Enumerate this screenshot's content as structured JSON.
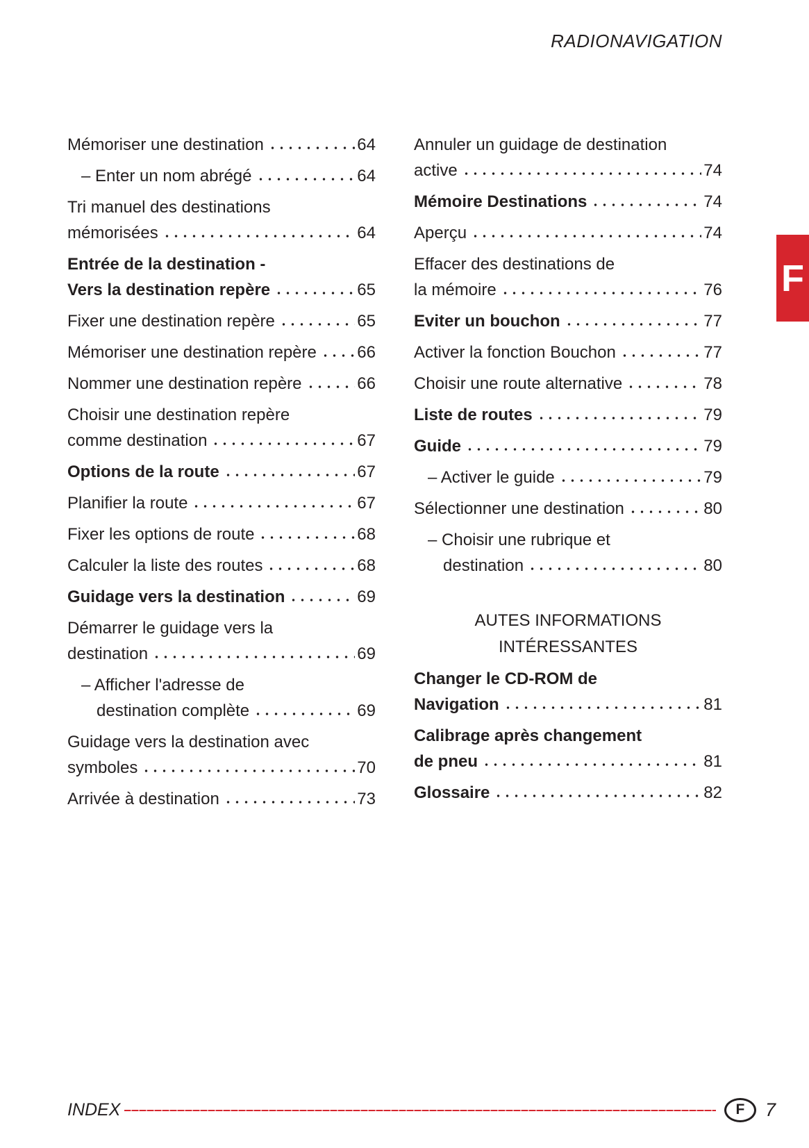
{
  "header": {
    "title": "RADIONAVIGATION"
  },
  "tab": {
    "label": "F"
  },
  "colors": {
    "accent_red": "#d6252d",
    "text": "#231f20"
  },
  "toc": {
    "left_column": [
      {
        "lines": [
          "Mémoriser une destination"
        ],
        "page": "64",
        "style": "normal"
      },
      {
        "lines": [
          "– Enter un nom abrégé"
        ],
        "page": "64",
        "style": "sub"
      },
      {
        "lines": [
          "Tri manuel des destinations",
          "mémorisées"
        ],
        "page": "64",
        "style": "normal"
      },
      {
        "lines": [
          "Entrée de la destination -",
          "Vers la destination repère"
        ],
        "page": "65",
        "style": "bold"
      },
      {
        "lines": [
          "Fixer une destination repère"
        ],
        "page": "65",
        "style": "normal"
      },
      {
        "lines": [
          "Mémoriser une destination repère"
        ],
        "page": "66",
        "style": "normal"
      },
      {
        "lines": [
          "Nommer une destination repère"
        ],
        "page": "66",
        "style": "normal"
      },
      {
        "lines": [
          "Choisir une destination repère",
          "comme destination"
        ],
        "page": "67",
        "style": "normal"
      },
      {
        "lines": [
          "Options de la route"
        ],
        "page": "67",
        "style": "bold"
      },
      {
        "lines": [
          "Planifier la route"
        ],
        "page": "67",
        "style": "normal"
      },
      {
        "lines": [
          "Fixer les options de route"
        ],
        "page": "68",
        "style": "normal"
      },
      {
        "lines": [
          "Calculer la liste des routes"
        ],
        "page": "68",
        "style": "normal"
      },
      {
        "lines": [
          "Guidage vers la destination"
        ],
        "page": "69",
        "style": "bold"
      },
      {
        "lines": [
          "Démarrer le guidage vers la",
          "destination"
        ],
        "page": "69",
        "style": "normal"
      },
      {
        "lines": [
          "– Afficher l'adresse de",
          "destination complète"
        ],
        "page": "69",
        "style": "sub"
      },
      {
        "lines": [
          "Guidage vers la destination avec",
          "symboles"
        ],
        "page": "70",
        "style": "normal"
      },
      {
        "lines": [
          "Arrivée à destination"
        ],
        "page": "73",
        "style": "normal"
      }
    ],
    "right_column": [
      {
        "lines": [
          "Annuler un guidage de destination",
          "active"
        ],
        "page": "74",
        "style": "normal"
      },
      {
        "lines": [
          "Mémoire Destinations"
        ],
        "page": "74",
        "style": "bold"
      },
      {
        "lines": [
          "Aperçu"
        ],
        "page": "74",
        "style": "normal"
      },
      {
        "lines": [
          "Effacer des destinations de",
          "la mémoire"
        ],
        "page": "76",
        "style": "normal"
      },
      {
        "lines": [
          "Eviter un bouchon"
        ],
        "page": "77",
        "style": "bold"
      },
      {
        "lines": [
          "Activer la fonction Bouchon"
        ],
        "page": "77",
        "style": "normal"
      },
      {
        "lines": [
          "Choisir une route alternative"
        ],
        "page": "78",
        "style": "normal"
      },
      {
        "lines": [
          "Liste de routes"
        ],
        "page": "79",
        "style": "bold"
      },
      {
        "lines": [
          "Guide"
        ],
        "page": "79",
        "style": "bold"
      },
      {
        "lines": [
          "– Activer le guide"
        ],
        "page": "79",
        "style": "sub"
      },
      {
        "lines": [
          "Sélectionner une destination"
        ],
        "page": "80",
        "style": "normal"
      },
      {
        "lines": [
          "– Choisir une rubrique et",
          "destination"
        ],
        "page": "80",
        "style": "sub"
      },
      {
        "type": "heading",
        "lines": [
          "AUTES INFORMATIONS",
          "INTÉRESSANTES"
        ]
      },
      {
        "lines": [
          "Changer le CD-ROM de",
          "Navigation"
        ],
        "page": "81",
        "style": "bold"
      },
      {
        "lines": [
          "Calibrage après changement",
          "de pneu"
        ],
        "page": "81",
        "style": "bold"
      },
      {
        "lines": [
          "Glossaire"
        ],
        "page": "82",
        "style": "bold"
      }
    ]
  },
  "footer": {
    "index_label": "INDEX",
    "country_badge": "F",
    "page_number": "7"
  }
}
